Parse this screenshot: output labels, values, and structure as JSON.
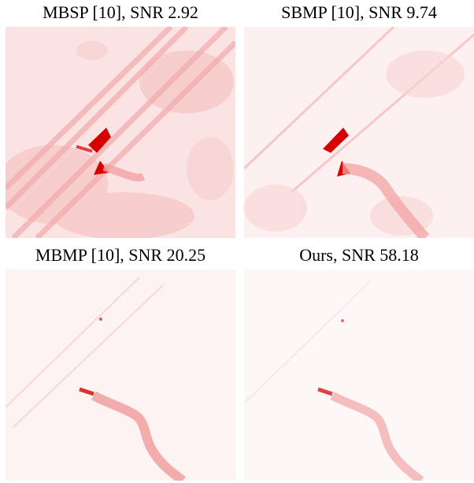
{
  "panels": [
    {
      "caption": "MBSP [10], SNR 2.92",
      "image": "heatmap-red-detection-map"
    },
    {
      "caption": "SBMP [10], SNR 9.74",
      "image": "heatmap-red-detection-map"
    },
    {
      "caption": "MBMP [10], SNR 20.25",
      "image": "heatmap-red-detection-map"
    },
    {
      "caption": "Ours, SNR 58.18",
      "image": "heatmap-red-detection-map"
    }
  ],
  "colors": {
    "background": "#ffffff",
    "heat": "#e8000b"
  }
}
